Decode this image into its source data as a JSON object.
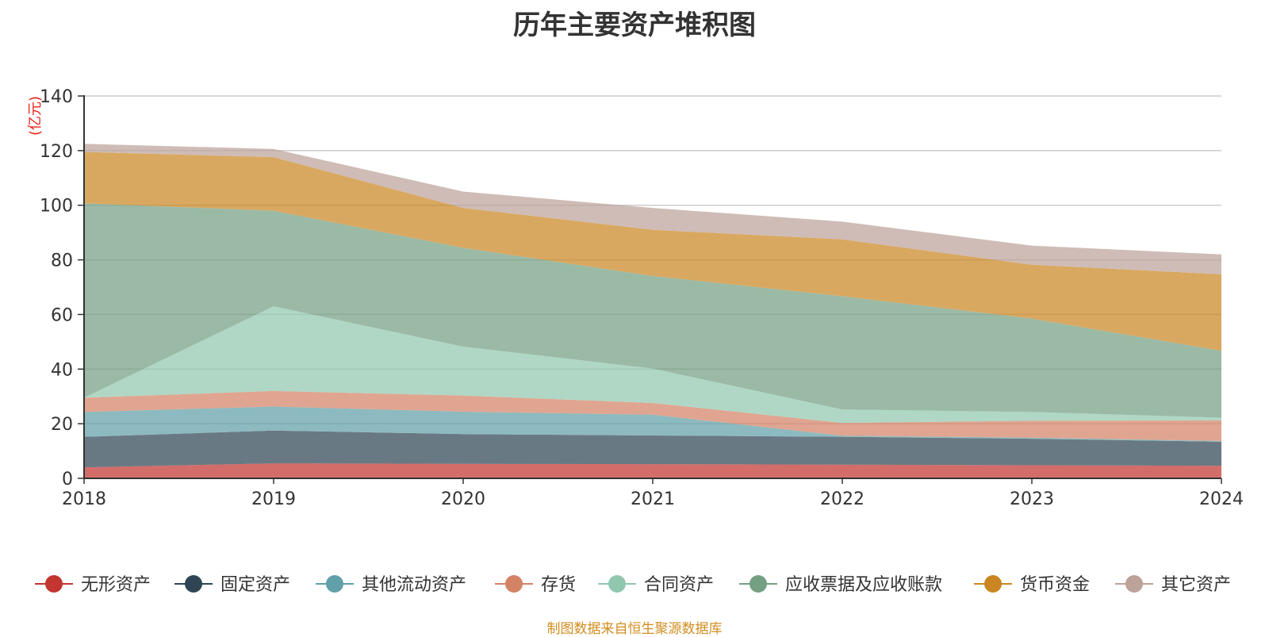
{
  "chart_data": {
    "type": "area",
    "stacked": true,
    "title": "历年主要资产堆积图",
    "ylabel": "(亿元)",
    "xlabel": "",
    "x": [
      "2018",
      "2019",
      "2020",
      "2021",
      "2022",
      "2023",
      "2024"
    ],
    "ylim": [
      0,
      140
    ],
    "yticks": [
      0,
      20,
      40,
      60,
      80,
      100,
      120,
      140
    ],
    "grid": true,
    "legend_position": "bottom",
    "series": [
      {
        "name": "无形资产",
        "color": "#c23531",
        "values": [
          4,
          5.5,
          5.3,
          5.2,
          5.0,
          4.8,
          4.6
        ]
      },
      {
        "name": "固定资产",
        "color": "#2f4554",
        "values": [
          11.2,
          12.0,
          10.9,
          10.5,
          10.2,
          9.7,
          8.8
        ]
      },
      {
        "name": "其他流动资产",
        "color": "#61a0a8",
        "values": [
          9.1,
          8.8,
          8.2,
          7.6,
          0.4,
          0.4,
          0.3
        ]
      },
      {
        "name": "存货",
        "color": "#d48265",
        "values": [
          5.2,
          5.7,
          5.9,
          4.3,
          4.7,
          6.2,
          7.5
        ]
      },
      {
        "name": "合同资产",
        "color": "#91c7ae",
        "values": [
          0,
          31.0,
          17.9,
          12.6,
          4.9,
          3.2,
          1.0
        ]
      },
      {
        "name": "应收票据及应收账款",
        "color": "#749f83",
        "values": [
          71.2,
          35.0,
          36.2,
          33.9,
          41.5,
          34.2,
          24.5
        ]
      },
      {
        "name": "货币资金",
        "color": "#ca8622",
        "values": [
          18.8,
          19.6,
          14.6,
          16.9,
          20.8,
          19.7,
          28.0
        ]
      },
      {
        "name": "其它资产",
        "color": "#bda29a",
        "values": [
          3.0,
          3.0,
          6.0,
          8.0,
          6.5,
          7.0,
          7.3
        ]
      }
    ]
  },
  "footer": {
    "source": "制图数据来自恒生聚源数据库"
  }
}
